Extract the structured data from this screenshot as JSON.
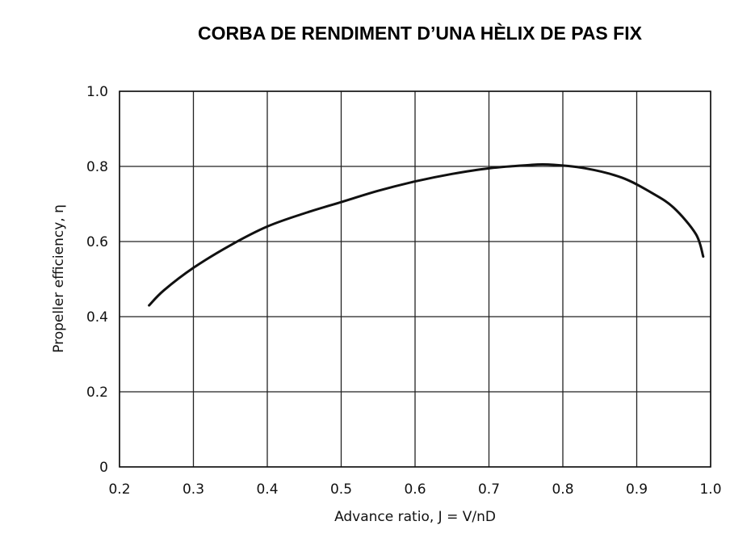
{
  "title": "CORBA DE RENDIMENT D’UNA HÈLIX DE PAS FIX",
  "chart_data": {
    "type": "line",
    "title": "CORBA DE RENDIMENT D’UNA HÈLIX DE PAS FIX",
    "xlabel": "Advance ratio,  J = V/nD",
    "ylabel": "Propeller efficiency, η",
    "xlim": [
      0.2,
      1.0
    ],
    "ylim": [
      0,
      1.0
    ],
    "x_ticks": [
      "0.2",
      "0.3",
      "0.4",
      "0.5",
      "0.6",
      "0.7",
      "0.8",
      "0.9",
      "1.0"
    ],
    "y_ticks": [
      "0",
      "0.2",
      "0.4",
      "0.6",
      "0.8",
      "1.0"
    ],
    "grid": true,
    "series": [
      {
        "x": [
          0.24,
          0.26,
          0.3,
          0.35,
          0.4,
          0.45,
          0.5,
          0.55,
          0.6,
          0.65,
          0.7,
          0.75,
          0.78,
          0.83,
          0.88,
          0.92,
          0.95,
          0.98,
          0.99
        ],
        "y": [
          0.43,
          0.47,
          0.53,
          0.59,
          0.64,
          0.675,
          0.705,
          0.735,
          0.76,
          0.78,
          0.795,
          0.803,
          0.805,
          0.795,
          0.77,
          0.73,
          0.69,
          0.62,
          0.56
        ]
      }
    ],
    "color": "#111111"
  }
}
